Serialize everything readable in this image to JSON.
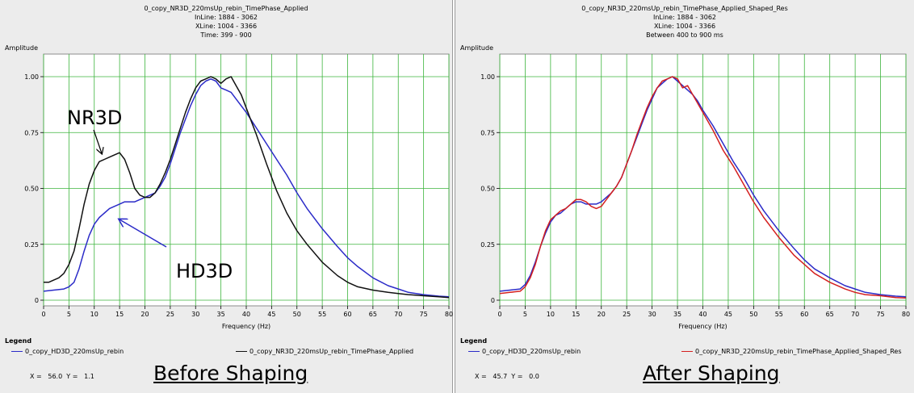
{
  "panels": [
    {
      "header": [
        "0_copy_NR3D_220msUp_rebin_TimePhase_Applied",
        "InLine: 1884 - 3062",
        "XLine: 1004 - 3366",
        "Time: 399 - 900"
      ],
      "ylabel": "Amplitude",
      "xlabel": "Frequency (Hz)",
      "legend_title": "Legend",
      "legend": [
        "0_copy_HD3D_220msUp_rebin",
        "0_copy_NR3D_220msUp_rebin_TimePhase_Applied"
      ],
      "readout_x_label": "X =",
      "readout_x_value": "56.0",
      "readout_y_label": "Y =",
      "readout_y_value": "1.1",
      "caption": "Before Shaping",
      "annotations": [
        "NR3D",
        "HD3D"
      ]
    },
    {
      "header": [
        "0_copy_NR3D_220msUp_rebin_TimePhase_Applied_Shaped_Res",
        "InLine: 1884 - 3062",
        "XLine: 1004 - 3366",
        "Between 400 to 900 ms"
      ],
      "ylabel": "Amplitude",
      "xlabel": "Frequency (Hz)",
      "legend_title": "Legend",
      "legend": [
        "0_copy_HD3D_220msUp_rebin",
        "0_copy_NR3D_220msUp_rebin_TimePhase_Applied_Shaped_Res"
      ],
      "readout_x_label": "X =",
      "readout_x_value": "45.7",
      "readout_y_label": "Y =",
      "readout_y_value": "0.0",
      "caption": "After Shaping",
      "annotations": []
    }
  ],
  "colors": {
    "plot_bg": "#ffffff",
    "grid": "#3cb43c",
    "blue": "#2b2bc8",
    "black": "#111111",
    "red": "#d42020"
  },
  "chart_data": [
    {
      "type": "line",
      "xlabel": "Frequency (Hz)",
      "ylabel": "Amplitude",
      "xlim": [
        0,
        80
      ],
      "ylim": [
        0,
        1
      ],
      "xticks": [
        0,
        5,
        10,
        15,
        20,
        25,
        30,
        35,
        40,
        45,
        50,
        55,
        60,
        65,
        70,
        75,
        80
      ],
      "yticks": [
        0,
        0.25,
        0.5,
        0.75,
        1.0
      ],
      "ytick_labels": [
        "0",
        "0.25",
        "0.50",
        "0.75",
        "1.00"
      ],
      "grid": true,
      "series": [
        {
          "name": "0_copy_HD3D_220msUp_rebin",
          "color": "#2b2bc8",
          "x": [
            0,
            2,
            4,
            5,
            6,
            7,
            8,
            9,
            10,
            11,
            12,
            13,
            14,
            15,
            16,
            17,
            18,
            19,
            20,
            21,
            22,
            23,
            24,
            25,
            26,
            27,
            28,
            29,
            30,
            31,
            32,
            33,
            34,
            35,
            36,
            37,
            38,
            39,
            40,
            42,
            44,
            46,
            48,
            50,
            52,
            55,
            58,
            60,
            62,
            65,
            68,
            70,
            72,
            75,
            78,
            80
          ],
          "y": [
            0.04,
            0.045,
            0.05,
            0.06,
            0.08,
            0.14,
            0.22,
            0.29,
            0.34,
            0.37,
            0.39,
            0.41,
            0.42,
            0.43,
            0.44,
            0.44,
            0.44,
            0.45,
            0.46,
            0.47,
            0.48,
            0.51,
            0.55,
            0.61,
            0.68,
            0.75,
            0.81,
            0.87,
            0.92,
            0.96,
            0.98,
            0.99,
            0.98,
            0.95,
            0.94,
            0.93,
            0.9,
            0.87,
            0.84,
            0.77,
            0.7,
            0.63,
            0.56,
            0.48,
            0.41,
            0.32,
            0.24,
            0.19,
            0.15,
            0.1,
            0.065,
            0.05,
            0.035,
            0.025,
            0.018,
            0.015
          ]
        },
        {
          "name": "0_copy_NR3D_220msUp_rebin_TimePhase_Applied",
          "color": "#111111",
          "x": [
            0,
            1,
            2,
            3,
            4,
            5,
            6,
            7,
            8,
            9,
            10,
            11,
            12,
            13,
            14,
            15,
            16,
            17,
            18,
            19,
            20,
            21,
            22,
            23,
            24,
            25,
            26,
            27,
            28,
            29,
            30,
            31,
            32,
            33,
            34,
            35,
            36,
            37,
            38,
            39,
            40,
            42,
            44,
            46,
            48,
            50,
            52,
            55,
            58,
            60,
            62,
            65,
            68,
            70,
            72,
            75,
            78,
            80
          ],
          "y": [
            0.08,
            0.08,
            0.09,
            0.1,
            0.12,
            0.16,
            0.22,
            0.32,
            0.43,
            0.52,
            0.58,
            0.62,
            0.63,
            0.64,
            0.65,
            0.66,
            0.63,
            0.57,
            0.5,
            0.47,
            0.46,
            0.46,
            0.48,
            0.52,
            0.57,
            0.63,
            0.7,
            0.77,
            0.84,
            0.9,
            0.95,
            0.98,
            0.99,
            1.0,
            0.99,
            0.97,
            0.99,
            1.0,
            0.96,
            0.92,
            0.86,
            0.74,
            0.61,
            0.49,
            0.39,
            0.31,
            0.25,
            0.17,
            0.11,
            0.08,
            0.06,
            0.045,
            0.035,
            0.03,
            0.025,
            0.02,
            0.015,
            0.012
          ]
        }
      ]
    },
    {
      "type": "line",
      "xlabel": "Frequency (Hz)",
      "ylabel": "Amplitude",
      "xlim": [
        0,
        80
      ],
      "ylim": [
        0,
        1
      ],
      "xticks": [
        0,
        5,
        10,
        15,
        20,
        25,
        30,
        35,
        40,
        45,
        50,
        55,
        60,
        65,
        70,
        75,
        80
      ],
      "yticks": [
        0,
        0.25,
        0.5,
        0.75,
        1.0
      ],
      "ytick_labels": [
        "0",
        "0.25",
        "0.50",
        "0.75",
        "1.00"
      ],
      "grid": true,
      "series": [
        {
          "name": "0_copy_HD3D_220msUp_rebin",
          "color": "#2b2bc8",
          "x": [
            0,
            2,
            4,
            5,
            6,
            7,
            8,
            9,
            10,
            11,
            12,
            13,
            14,
            15,
            16,
            17,
            18,
            19,
            20,
            21,
            22,
            23,
            24,
            25,
            26,
            27,
            28,
            29,
            30,
            31,
            32,
            33,
            34,
            35,
            36,
            37,
            38,
            39,
            40,
            42,
            44,
            46,
            48,
            50,
            52,
            55,
            58,
            60,
            62,
            65,
            68,
            70,
            72,
            75,
            78,
            80
          ],
          "y": [
            0.04,
            0.045,
            0.05,
            0.07,
            0.11,
            0.17,
            0.24,
            0.3,
            0.35,
            0.38,
            0.39,
            0.41,
            0.43,
            0.44,
            0.44,
            0.43,
            0.43,
            0.43,
            0.44,
            0.46,
            0.48,
            0.51,
            0.55,
            0.61,
            0.67,
            0.73,
            0.79,
            0.85,
            0.9,
            0.95,
            0.97,
            0.99,
            1.0,
            0.98,
            0.96,
            0.94,
            0.92,
            0.89,
            0.85,
            0.78,
            0.7,
            0.62,
            0.55,
            0.47,
            0.4,
            0.31,
            0.23,
            0.18,
            0.14,
            0.1,
            0.065,
            0.05,
            0.035,
            0.025,
            0.018,
            0.015
          ]
        },
        {
          "name": "0_copy_NR3D_220msUp_rebin_TimePhase_Applied_Shaped_Res",
          "color": "#d42020",
          "x": [
            0,
            2,
            4,
            5,
            6,
            7,
            8,
            9,
            10,
            11,
            12,
            13,
            14,
            15,
            16,
            17,
            18,
            19,
            20,
            21,
            22,
            23,
            24,
            25,
            26,
            27,
            28,
            29,
            30,
            31,
            32,
            33,
            34,
            35,
            36,
            37,
            38,
            39,
            40,
            42,
            44,
            46,
            48,
            50,
            52,
            55,
            58,
            60,
            62,
            65,
            68,
            70,
            72,
            75,
            78,
            80
          ],
          "y": [
            0.03,
            0.035,
            0.04,
            0.06,
            0.1,
            0.16,
            0.24,
            0.31,
            0.36,
            0.38,
            0.4,
            0.41,
            0.43,
            0.45,
            0.45,
            0.44,
            0.42,
            0.41,
            0.42,
            0.45,
            0.48,
            0.51,
            0.55,
            0.61,
            0.67,
            0.74,
            0.8,
            0.86,
            0.91,
            0.95,
            0.98,
            0.99,
            1.0,
            0.99,
            0.95,
            0.96,
            0.92,
            0.88,
            0.84,
            0.76,
            0.67,
            0.6,
            0.52,
            0.44,
            0.37,
            0.28,
            0.2,
            0.16,
            0.12,
            0.08,
            0.05,
            0.035,
            0.025,
            0.02,
            0.012,
            0.01
          ]
        }
      ]
    }
  ]
}
